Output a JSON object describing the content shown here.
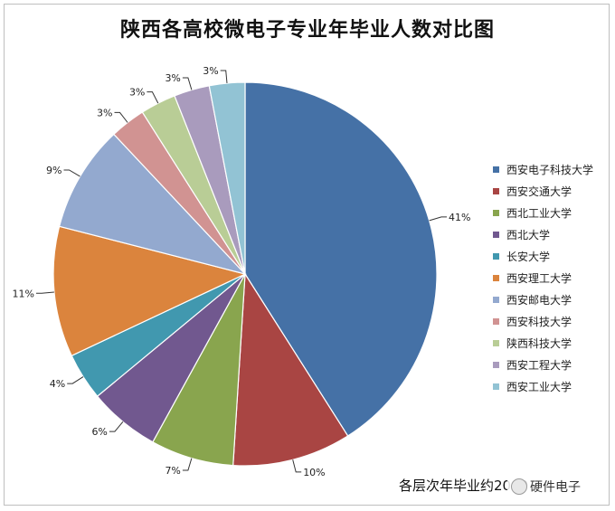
{
  "chart_data": {
    "type": "pie",
    "title": "陕西各高校微电子专业年毕业人数对比图",
    "legend_position": "right",
    "slices": [
      {
        "name": "西安电子科技大学",
        "value": 41,
        "label": "41%",
        "color": "#4571a6"
      },
      {
        "name": "西安交通大学",
        "value": 10,
        "label": "10%",
        "color": "#a94543"
      },
      {
        "name": "西北工业大学",
        "value": 7,
        "label": "7%",
        "color": "#89a54e"
      },
      {
        "name": "西北大学",
        "value": 6,
        "label": "6%",
        "color": "#71588f"
      },
      {
        "name": "长安大学",
        "value": 4,
        "label": "4%",
        "color": "#4198af"
      },
      {
        "name": "西安理工大学",
        "value": 11,
        "label": "11%",
        "color": "#db843d"
      },
      {
        "name": "西安邮电大学",
        "value": 9,
        "label": "9%",
        "color": "#93a9cf"
      },
      {
        "name": "西安科技大学",
        "value": 3,
        "label": "3%",
        "color": "#d19392"
      },
      {
        "name": "陕西科技大学",
        "value": 3,
        "label": "3%",
        "color": "#b9cd96"
      },
      {
        "name": "西安工程大学",
        "value": 3,
        "label": "3%",
        "color": "#a99bbd"
      },
      {
        "name": "西安工业大学",
        "value": 3,
        "label": "3%",
        "color": "#92c3d4"
      }
    ],
    "annotation": "各层次年毕业约2000"
  },
  "watermark": {
    "text": "硬件电子"
  }
}
